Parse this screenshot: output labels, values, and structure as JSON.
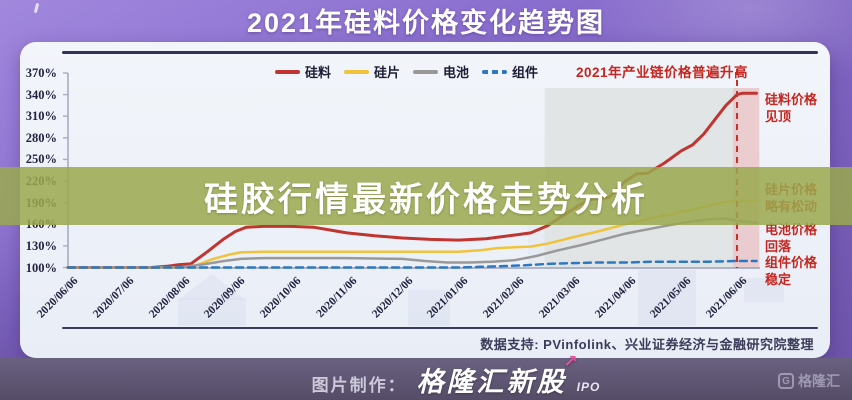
{
  "title": "2021年硅料价格变化趋势图",
  "overlay": {
    "text": "硅胶行情最新价格走势分析"
  },
  "chart": {
    "heading_annotation": "2021年产业链价格普遍升高",
    "side_annotations": [
      {
        "text": "硅料价格\n见顶"
      },
      {
        "text": "硅片价格\n略有松动"
      },
      {
        "text": "电池价格\n回落"
      },
      {
        "text": "组件价格\n稳定"
      }
    ],
    "source_note": "数据支持: PVinfolink、兴业证券经济与金融研究院整理"
  },
  "chart_data": {
    "type": "line",
    "title": "2021年硅料价格变化趋势图",
    "x_categories": [
      "2020/06/06",
      "2020/07/06",
      "2020/08/06",
      "2020/09/06",
      "2020/10/06",
      "2020/11/06",
      "2020/12/06",
      "2021/01/06",
      "2021/02/06",
      "2021/03/06",
      "2021/04/06",
      "2021/05/06",
      "2021/06/06"
    ],
    "x_unit": "months since 2020/06/06",
    "ylim": [
      100,
      370
    ],
    "ytick_step": 30,
    "ytick_suffix": "%",
    "grid": false,
    "legend_position": "top-center",
    "series": [
      {
        "name": "硅料",
        "color": "#c13531",
        "style": "solid",
        "width": 3,
        "points": [
          [
            0,
            100
          ],
          [
            0.5,
            100
          ],
          [
            1,
            100
          ],
          [
            1.5,
            100
          ],
          [
            1.8,
            102
          ],
          [
            2,
            104
          ],
          [
            2.2,
            105
          ],
          [
            2.5,
            122
          ],
          [
            2.8,
            140
          ],
          [
            3,
            150
          ],
          [
            3.2,
            156
          ],
          [
            3.5,
            157
          ],
          [
            4,
            157
          ],
          [
            4.4,
            156
          ],
          [
            4.7,
            152
          ],
          [
            5,
            148
          ],
          [
            5.5,
            144
          ],
          [
            6,
            141
          ],
          [
            6.5,
            139
          ],
          [
            7,
            138
          ],
          [
            7.5,
            140
          ],
          [
            8,
            145
          ],
          [
            8.3,
            148
          ],
          [
            8.6,
            158
          ],
          [
            9,
            178
          ],
          [
            9.2,
            188
          ],
          [
            9.4,
            195
          ],
          [
            9.7,
            197
          ],
          [
            10,
            220
          ],
          [
            10.2,
            230
          ],
          [
            10.4,
            231
          ],
          [
            10.7,
            245
          ],
          [
            11,
            262
          ],
          [
            11.2,
            270
          ],
          [
            11.4,
            285
          ],
          [
            11.6,
            305
          ],
          [
            11.8,
            325
          ],
          [
            12,
            340
          ],
          [
            12.1,
            342
          ],
          [
            12.35,
            342
          ]
        ]
      },
      {
        "name": "硅片",
        "color": "#efc33c",
        "style": "solid",
        "width": 2.5,
        "points": [
          [
            0,
            100
          ],
          [
            1,
            100
          ],
          [
            2,
            100
          ],
          [
            2.3,
            103
          ],
          [
            2.6,
            112
          ],
          [
            2.9,
            118
          ],
          [
            3.1,
            121
          ],
          [
            3.5,
            122
          ],
          [
            5,
            122
          ],
          [
            7,
            122
          ],
          [
            7.4,
            124
          ],
          [
            7.7,
            127
          ],
          [
            8,
            128
          ],
          [
            8.3,
            129
          ],
          [
            8.6,
            133
          ],
          [
            9,
            141
          ],
          [
            9.5,
            150
          ],
          [
            10,
            160
          ],
          [
            10.5,
            169
          ],
          [
            11,
            177
          ],
          [
            11.3,
            182
          ],
          [
            11.6,
            188
          ],
          [
            11.9,
            192
          ],
          [
            12,
            193
          ],
          [
            12.35,
            193
          ]
        ]
      },
      {
        "name": "电池",
        "color": "#999999",
        "style": "solid",
        "width": 2.5,
        "points": [
          [
            0,
            100
          ],
          [
            1,
            100
          ],
          [
            2,
            100
          ],
          [
            2.4,
            104
          ],
          [
            2.8,
            109
          ],
          [
            3.1,
            112
          ],
          [
            3.5,
            113
          ],
          [
            5,
            113
          ],
          [
            6,
            112
          ],
          [
            6.4,
            109
          ],
          [
            6.8,
            107
          ],
          [
            7.2,
            107
          ],
          [
            7.6,
            108
          ],
          [
            8,
            110
          ],
          [
            8.4,
            116
          ],
          [
            8.8,
            124
          ],
          [
            9.2,
            131
          ],
          [
            9.6,
            139
          ],
          [
            10,
            147
          ],
          [
            10.4,
            153
          ],
          [
            10.8,
            159
          ],
          [
            11.2,
            164
          ],
          [
            11.5,
            167
          ],
          [
            11.8,
            168
          ],
          [
            12,
            165
          ],
          [
            12.35,
            162
          ]
        ]
      },
      {
        "name": "组件",
        "color": "#2e78c2",
        "style": "dashed",
        "width": 2.5,
        "points": [
          [
            0,
            100
          ],
          [
            1,
            100
          ],
          [
            2,
            100
          ],
          [
            3,
            100
          ],
          [
            4,
            100
          ],
          [
            5,
            100
          ],
          [
            6,
            100
          ],
          [
            7,
            100
          ],
          [
            7.4,
            101
          ],
          [
            7.8,
            102
          ],
          [
            8.2,
            103
          ],
          [
            8.6,
            105
          ],
          [
            9,
            106
          ],
          [
            9.5,
            107
          ],
          [
            10,
            107
          ],
          [
            10.5,
            108
          ],
          [
            11,
            108
          ],
          [
            11.5,
            108
          ],
          [
            12,
            109
          ],
          [
            12.35,
            109
          ]
        ]
      }
    ],
    "regions": {
      "highlight_span": {
        "from_month": 8.55,
        "to_month": 12,
        "color": "#dfe2e3",
        "label": "2021年产业链价格普遍升高"
      },
      "peak_band": {
        "from_month": 11.93,
        "to_month": 12.4,
        "color": "#eac3c6"
      },
      "dashed_vline_month": 12
    },
    "annotations": [
      "硅料价格见顶",
      "硅片价格略有松动",
      "电池价格回落",
      "组件价格稳定"
    ]
  },
  "footer": {
    "made_by_label": "图片制作：",
    "brand": "格隆汇新股",
    "brand_arrow": "↗",
    "brand_suffix": "IPO",
    "watermark_g": "G",
    "watermark": "格隆汇"
  },
  "colors": {
    "annotation_red": "#c5261f",
    "overlay_band_olive": "rgba(154,169,78,0.85)",
    "card_background": "#eef1f7",
    "footer_bar": "#5c5470",
    "background_purple": "#8a6ecf"
  }
}
